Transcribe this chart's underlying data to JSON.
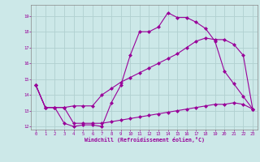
{
  "xlabel": "Windchill (Refroidissement éolien,°C)",
  "xlim": [
    -0.5,
    23.5
  ],
  "ylim": [
    11.8,
    19.7
  ],
  "yticks": [
    12,
    13,
    14,
    15,
    16,
    17,
    18,
    19
  ],
  "xticks": [
    0,
    1,
    2,
    3,
    4,
    5,
    6,
    7,
    8,
    9,
    10,
    11,
    12,
    13,
    14,
    15,
    16,
    17,
    18,
    19,
    20,
    21,
    22,
    23
  ],
  "bg_color": "#cce8e8",
  "grid_color": "#aacccc",
  "line_color": "#990099",
  "line1_x": [
    0,
    1,
    2,
    3,
    4,
    5,
    6,
    7,
    8,
    9,
    10,
    11,
    12,
    13,
    14,
    15,
    16,
    17,
    18,
    19,
    20,
    21,
    22,
    23
  ],
  "line1_y": [
    14.6,
    13.2,
    13.2,
    12.2,
    12.0,
    12.1,
    12.1,
    12.0,
    13.5,
    14.6,
    16.5,
    18.0,
    18.0,
    18.3,
    19.2,
    18.9,
    18.9,
    18.6,
    18.2,
    17.4,
    15.5,
    14.7,
    13.9,
    13.1
  ],
  "line2_x": [
    0,
    1,
    2,
    3,
    4,
    5,
    6,
    7,
    8,
    9,
    10,
    11,
    12,
    13,
    14,
    15,
    16,
    17,
    18,
    19,
    20,
    21,
    22,
    23
  ],
  "line2_y": [
    14.6,
    13.2,
    13.2,
    13.2,
    13.3,
    13.3,
    13.3,
    14.0,
    14.4,
    14.8,
    15.1,
    15.4,
    15.7,
    16.0,
    16.3,
    16.6,
    17.0,
    17.4,
    17.6,
    17.5,
    17.5,
    17.2,
    16.5,
    13.1
  ],
  "line3_x": [
    0,
    1,
    2,
    3,
    4,
    5,
    6,
    7,
    8,
    9,
    10,
    11,
    12,
    13,
    14,
    15,
    16,
    17,
    18,
    19,
    20,
    21,
    22,
    23
  ],
  "line3_y": [
    14.6,
    13.2,
    13.2,
    13.2,
    12.2,
    12.2,
    12.2,
    12.2,
    12.3,
    12.4,
    12.5,
    12.6,
    12.7,
    12.8,
    12.9,
    13.0,
    13.1,
    13.2,
    13.3,
    13.4,
    13.4,
    13.5,
    13.4,
    13.1
  ]
}
